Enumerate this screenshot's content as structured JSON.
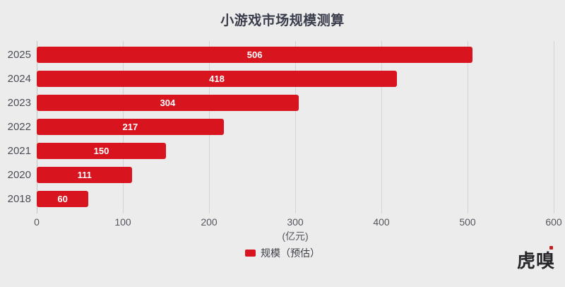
{
  "title": "小游戏市场规模测算",
  "chart_data": {
    "type": "bar",
    "orientation": "horizontal",
    "title": "小游戏市场规模测算",
    "categories": [
      "2025",
      "2024",
      "2023",
      "2022",
      "2021",
      "2020",
      "2018"
    ],
    "values": [
      506,
      418,
      304,
      217,
      150,
      111,
      60
    ],
    "series_name": "规模（预估）",
    "xlabel": "(亿元)",
    "xlim": [
      0,
      600
    ],
    "xticks": [
      0,
      100,
      200,
      300,
      400,
      500,
      600
    ],
    "grid": true,
    "legend_position": "bottom",
    "bar_color": "#d8141f",
    "value_label_color": "#ffffff",
    "value_label_position": "center"
  },
  "legend": {
    "label": "规模（预估）",
    "swatch_color": "#d8141f"
  },
  "axis": {
    "unit_label": "(亿元)"
  },
  "watermark": {
    "text": "虎嗅"
  },
  "colors": {
    "background": "#ececec",
    "bar": "#d8141f",
    "title_text": "#3a3d4c",
    "axis_text": "#55565e",
    "gridline": "#d4d4d7"
  }
}
